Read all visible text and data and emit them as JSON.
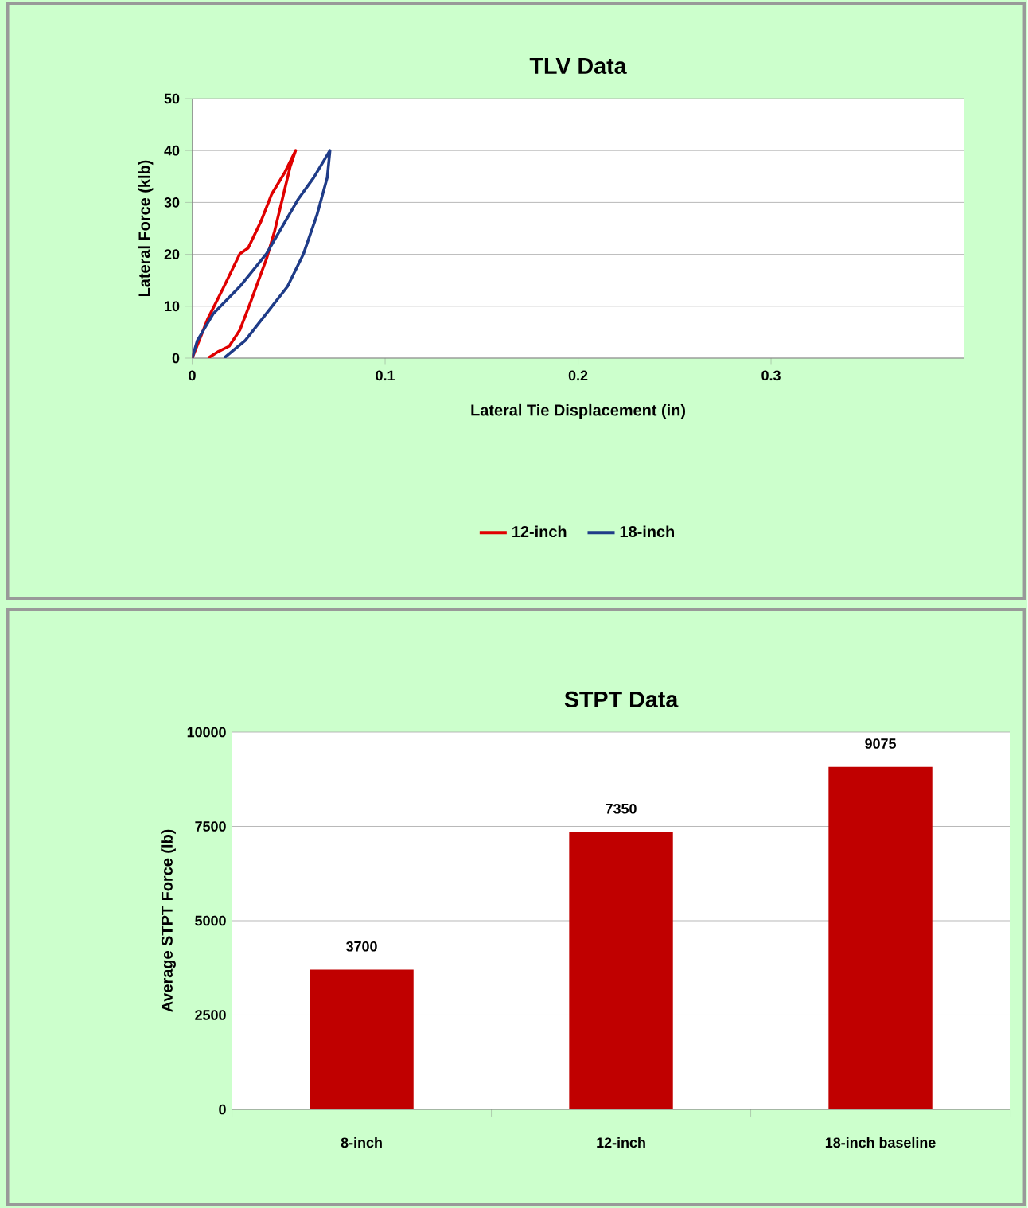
{
  "chart_data": [
    {
      "type": "line",
      "title": "TLV Data",
      "xlabel": "Lateral Tie Displacement (in)",
      "ylabel": "Lateral Force (klb)",
      "xlim": [
        0,
        0.4
      ],
      "xticks": [
        0,
        0.1,
        0.2,
        0.3
      ],
      "ylim": [
        0,
        50
      ],
      "yticks": [
        0,
        10,
        20,
        30,
        40,
        50
      ],
      "grid": "y",
      "legend": "bottom",
      "marker": "none",
      "line_style": "solid",
      "series": [
        {
          "name": "12-inch",
          "color": "#e00000",
          "x": [
            0,
            0.008,
            0.0165,
            0.0247,
            0.029,
            0.0357,
            0.0412,
            0.048,
            0.0536,
            0.0508,
            0.0467,
            0.0426,
            0.0385,
            0.0343,
            0.0302,
            0.0247,
            0.0192,
            0.0137,
            0.0082
          ],
          "values": [
            0,
            7.5,
            13.8,
            20.1,
            21.2,
            26.4,
            31.6,
            35.8,
            40,
            36.9,
            30.6,
            24.3,
            19.1,
            14.9,
            10.7,
            5.4,
            2.3,
            1.3,
            0
          ]
        },
        {
          "name": "18-inch",
          "color": "#1f3c88",
          "x": [
            0,
            0.0027,
            0.011,
            0.0247,
            0.0385,
            0.0549,
            0.063,
            0.0714,
            0.07,
            0.0646,
            0.0577,
            0.0494,
            0.0385,
            0.0275,
            0.0165
          ],
          "values": [
            0,
            3.4,
            8.6,
            13.8,
            20.1,
            30.6,
            34.8,
            40,
            34.8,
            27.5,
            20.1,
            13.8,
            8.6,
            3.4,
            0
          ]
        }
      ]
    },
    {
      "type": "bar",
      "title": "STPT Data",
      "ylabel": "Average STPT Force (lb)",
      "categories": [
        "8-inch",
        "12-inch",
        "18-inch baseline"
      ],
      "values": [
        3700,
        7350,
        9075
      ],
      "color": "#c00000",
      "ylim": [
        0,
        10000
      ],
      "yticks": [
        0,
        2500,
        5000,
        7500,
        10000
      ],
      "grid": "y",
      "data_labels": true
    }
  ]
}
